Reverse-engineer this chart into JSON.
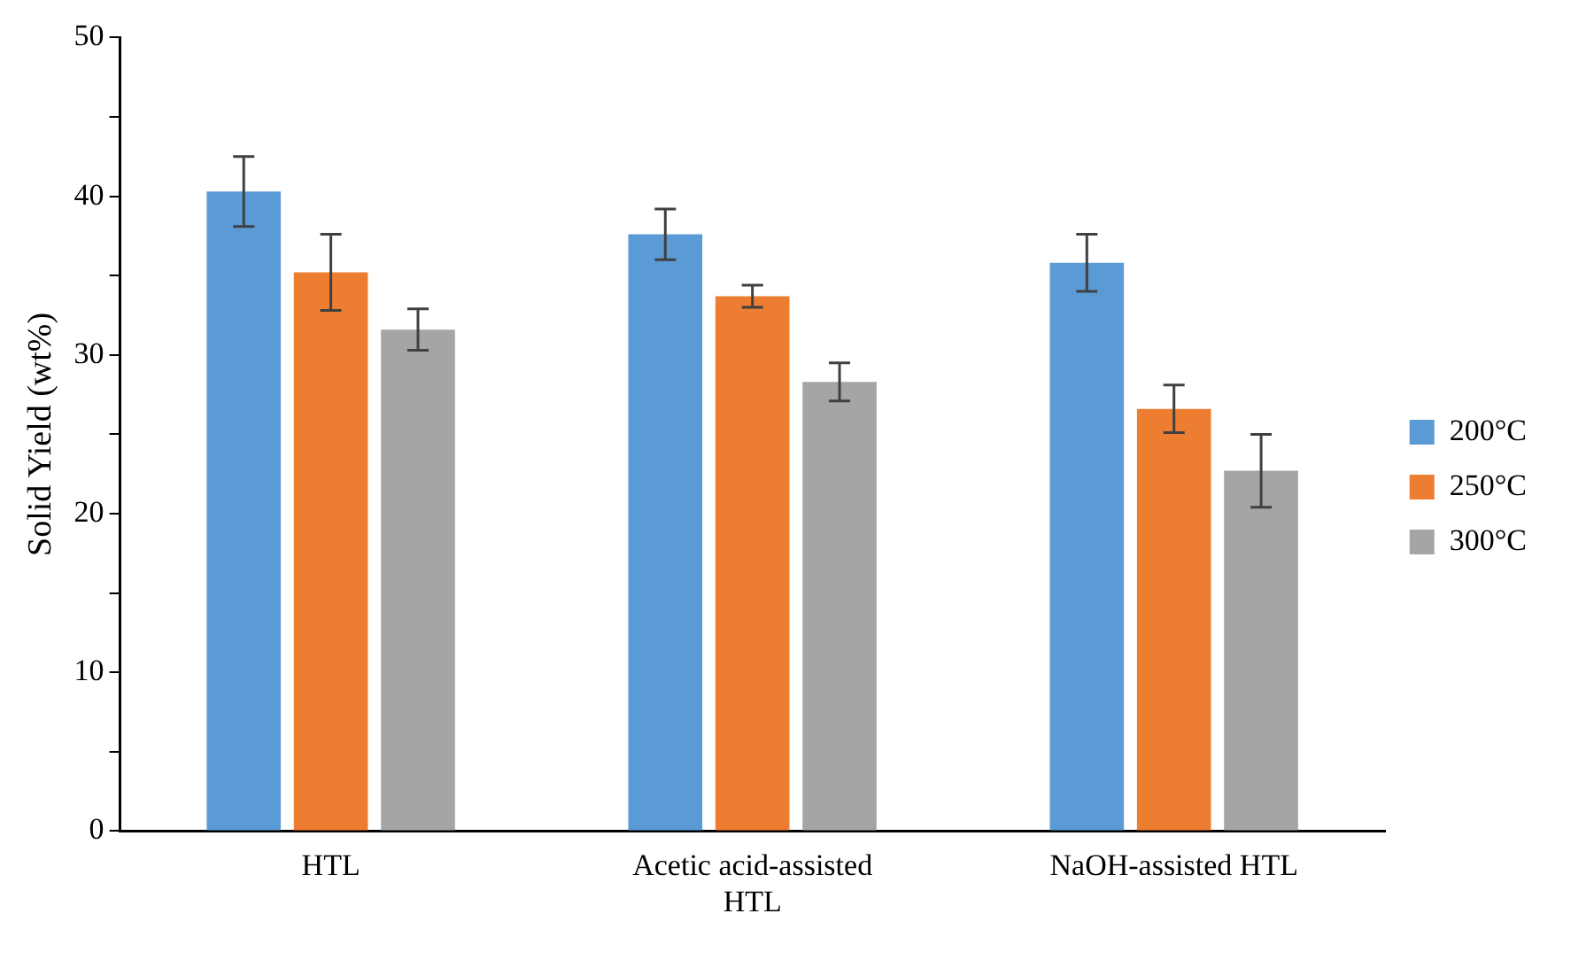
{
  "chart_data": {
    "type": "bar",
    "ylabel": "Solid Yield (wt%)",
    "categories": [
      "HTL",
      "Acetic acid-assisted HTL",
      "NaOH-assisted HTL"
    ],
    "series": [
      {
        "name": "200°C",
        "color": "#5b9bd5",
        "values": [
          40.3,
          37.6,
          35.8
        ],
        "errors": [
          2.2,
          1.6,
          1.8
        ]
      },
      {
        "name": "250°C",
        "color": "#ed7d31",
        "values": [
          35.2,
          33.7,
          26.6
        ],
        "errors": [
          2.4,
          0.7,
          1.5
        ]
      },
      {
        "name": "300°C",
        "color": "#a5a5a5",
        "values": [
          31.6,
          28.3,
          22.7
        ],
        "errors": [
          1.3,
          1.2,
          2.3
        ]
      }
    ],
    "ylim": [
      0,
      50
    ],
    "yticks": [
      0,
      {
        "value": 5,
        "label": null
      },
      10,
      {
        "value": 15,
        "label": null
      },
      20,
      {
        "value": 25,
        "label": null
      },
      30,
      {
        "value": 35,
        "label": null
      },
      40,
      {
        "value": 45,
        "label": null
      },
      50
    ],
    "grid": false,
    "legend": "right"
  }
}
